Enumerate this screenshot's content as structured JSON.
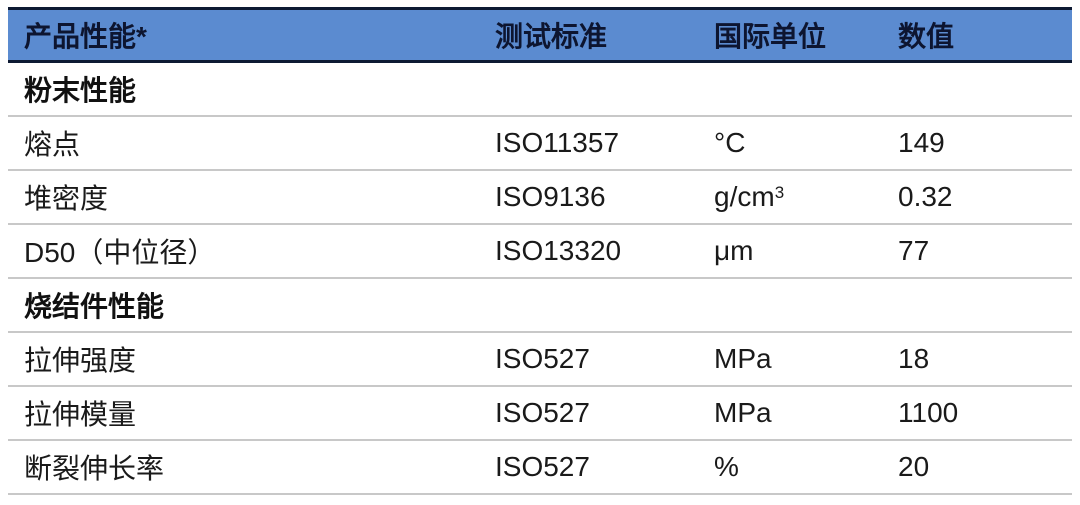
{
  "header": {
    "property": "产品性能*",
    "standard": "测试标准",
    "unit": "国际单位",
    "value": "数值"
  },
  "colors": {
    "header_bg": "#5b8bd0",
    "header_border": "#0d1a33",
    "row_line": "#c8c8c8"
  },
  "sections": [
    {
      "title": "粉末性能",
      "rows": [
        {
          "property": "熔点",
          "standard": "ISO11357",
          "unit": "°C",
          "unit_sup": "",
          "value": "149"
        },
        {
          "property": "堆密度",
          "standard": "ISO9136",
          "unit": "g/cm",
          "unit_sup": "3",
          "value": "0.32"
        },
        {
          "property": "D50（中位径）",
          "standard": "ISO13320",
          "unit": "μm",
          "unit_sup": "",
          "value": "77"
        }
      ]
    },
    {
      "title": "烧结件性能",
      "rows": [
        {
          "property": "拉伸强度",
          "standard": "ISO527",
          "unit": "MPa",
          "unit_sup": "",
          "value": "18"
        },
        {
          "property": "拉伸模量",
          "standard": "ISO527",
          "unit": "MPa",
          "unit_sup": "",
          "value": "1100"
        },
        {
          "property": "断裂伸长率",
          "standard": "ISO527",
          "unit": "%",
          "unit_sup": "",
          "value": "20"
        }
      ]
    }
  ]
}
